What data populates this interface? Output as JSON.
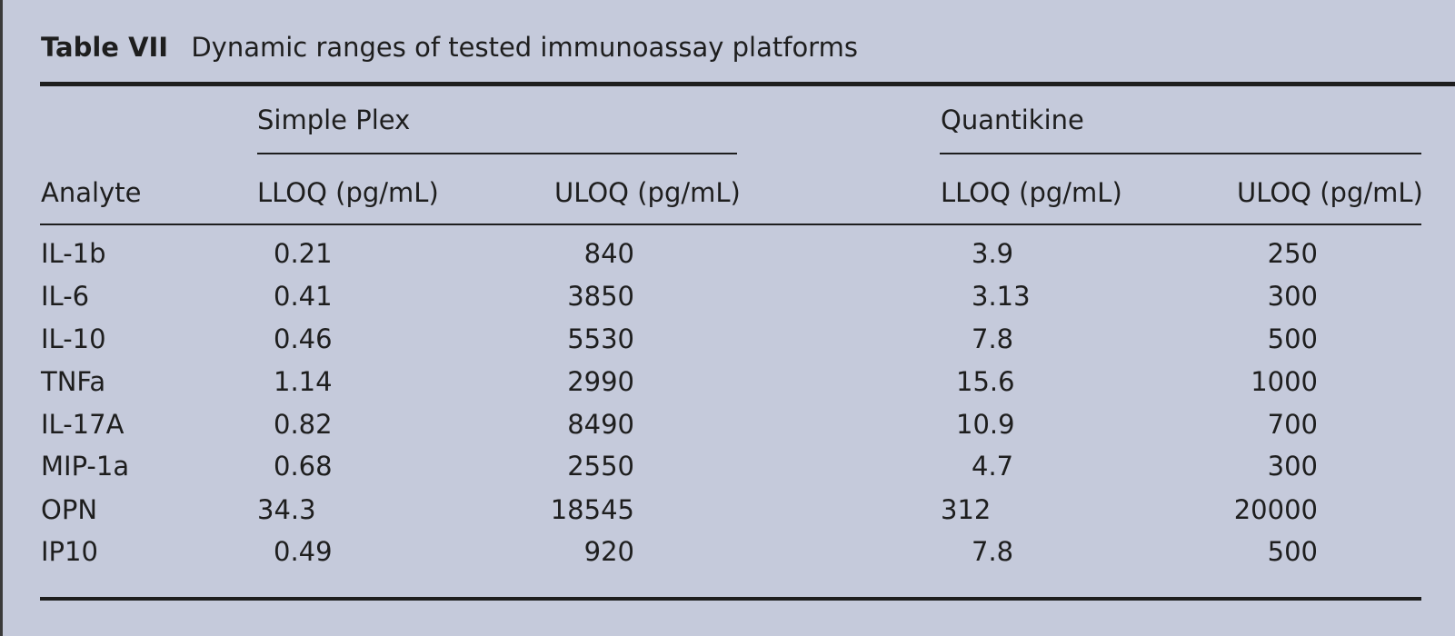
{
  "table": {
    "label": "Table VII",
    "caption": "Dynamic ranges of tested immunoassay platforms",
    "groups": {
      "simple_plex": "Simple Plex",
      "quantikine": "Quantikine"
    },
    "columns": {
      "analyte": "Analyte",
      "sp_lloq": "LLOQ (pg/mL)",
      "sp_uloq": "ULOQ (pg/mL)",
      "qk_lloq": "LLOQ (pg/mL)",
      "qk_uloq": "ULOQ (pg/mL)"
    },
    "rows": [
      {
        "analyte": "IL-1b",
        "sp_lloq": "0.21",
        "sp_uloq": "840",
        "qk_lloq": "3.9",
        "qk_uloq": "250"
      },
      {
        "analyte": "IL-6",
        "sp_lloq": "0.41",
        "sp_uloq": "3850",
        "qk_lloq": "3.13",
        "qk_uloq": "300"
      },
      {
        "analyte": "IL-10",
        "sp_lloq": "0.46",
        "sp_uloq": "5530",
        "qk_lloq": "7.8",
        "qk_uloq": "500"
      },
      {
        "analyte": "TNFa",
        "sp_lloq": "1.14",
        "sp_uloq": "2990",
        "qk_lloq": "15.6",
        "qk_uloq": "1000"
      },
      {
        "analyte": "IL-17A",
        "sp_lloq": "0.82",
        "sp_uloq": "8490",
        "qk_lloq": "10.9",
        "qk_uloq": "700"
      },
      {
        "analyte": "MIP-1a",
        "sp_lloq": "0.68",
        "sp_uloq": "2550",
        "qk_lloq": "4.7",
        "qk_uloq": "300"
      },
      {
        "analyte": "OPN",
        "sp_lloq": "34.3",
        "sp_uloq": "18545",
        "qk_lloq": "312",
        "qk_uloq": "20000"
      },
      {
        "analyte": "IP10",
        "sp_lloq": "0.49",
        "sp_uloq": "920",
        "qk_lloq": "7.8",
        "qk_uloq": "500"
      }
    ]
  }
}
